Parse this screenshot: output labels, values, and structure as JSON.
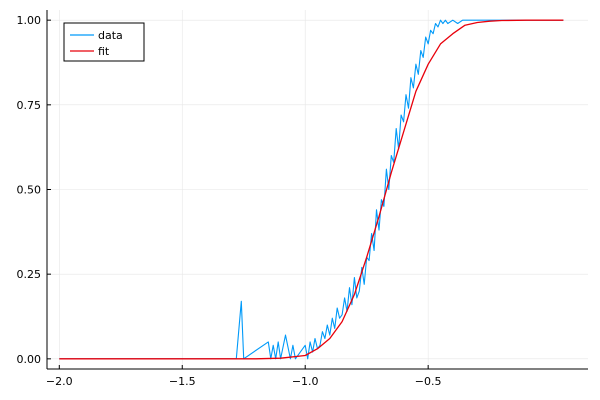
{
  "chart_data": {
    "type": "line",
    "title": "",
    "xlabel": "",
    "ylabel": "",
    "xlim": [
      -2.05,
      0.15
    ],
    "ylim": [
      -0.03,
      1.03
    ],
    "grid": true,
    "legend_position": "top-left",
    "x_ticks": [
      {
        "value": -2.0,
        "label": "−2.0"
      },
      {
        "value": -1.5,
        "label": "−1.5"
      },
      {
        "value": -1.0,
        "label": "−1.0"
      },
      {
        "value": -0.5,
        "label": "−0.5"
      }
    ],
    "y_ticks": [
      {
        "value": 0.0,
        "label": "0.00"
      },
      {
        "value": 0.25,
        "label": "0.25"
      },
      {
        "value": 0.5,
        "label": "0.50"
      },
      {
        "value": 0.75,
        "label": "0.75"
      },
      {
        "value": 1.0,
        "label": "1.00"
      }
    ],
    "series": [
      {
        "name": "data",
        "color": "#009af9",
        "style": "noisy-step",
        "x": [
          -2.0,
          -1.5,
          -1.28,
          -1.26,
          -1.25,
          -1.15,
          -1.14,
          -1.13,
          -1.12,
          -1.11,
          -1.1,
          -1.08,
          -1.06,
          -1.05,
          -1.04,
          -1.02,
          -1.0,
          -0.99,
          -0.98,
          -0.97,
          -0.96,
          -0.95,
          -0.94,
          -0.93,
          -0.92,
          -0.91,
          -0.9,
          -0.89,
          -0.88,
          -0.87,
          -0.86,
          -0.85,
          -0.84,
          -0.83,
          -0.82,
          -0.81,
          -0.8,
          -0.79,
          -0.78,
          -0.77,
          -0.76,
          -0.75,
          -0.74,
          -0.73,
          -0.72,
          -0.71,
          -0.7,
          -0.69,
          -0.68,
          -0.67,
          -0.66,
          -0.65,
          -0.64,
          -0.63,
          -0.62,
          -0.61,
          -0.6,
          -0.59,
          -0.58,
          -0.57,
          -0.56,
          -0.55,
          -0.54,
          -0.53,
          -0.52,
          -0.51,
          -0.5,
          -0.49,
          -0.48,
          -0.47,
          -0.46,
          -0.45,
          -0.44,
          -0.43,
          -0.42,
          -0.4,
          -0.38,
          -0.36,
          -0.34,
          -0.32,
          -0.3,
          -0.28,
          -0.26,
          -0.2,
          -0.1,
          0.05
        ],
        "y": [
          0.0,
          0.0,
          0.0,
          0.17,
          0.0,
          0.05,
          0.0,
          0.04,
          0.0,
          0.05,
          0.0,
          0.07,
          0.0,
          0.04,
          0.0,
          0.02,
          0.04,
          0.0,
          0.05,
          0.02,
          0.06,
          0.03,
          0.04,
          0.08,
          0.06,
          0.1,
          0.07,
          0.12,
          0.09,
          0.15,
          0.12,
          0.13,
          0.18,
          0.14,
          0.21,
          0.16,
          0.24,
          0.18,
          0.2,
          0.27,
          0.22,
          0.3,
          0.29,
          0.37,
          0.32,
          0.44,
          0.38,
          0.47,
          0.45,
          0.56,
          0.5,
          0.6,
          0.58,
          0.68,
          0.62,
          0.72,
          0.7,
          0.78,
          0.74,
          0.83,
          0.8,
          0.87,
          0.84,
          0.91,
          0.89,
          0.95,
          0.93,
          0.97,
          0.96,
          0.99,
          0.98,
          1.0,
          0.99,
          1.0,
          0.99,
          1.0,
          0.99,
          1.0,
          1.0,
          1.0,
          1.0,
          1.0,
          1.0,
          1.0,
          1.0,
          1.0
        ]
      },
      {
        "name": "fit",
        "color": "#e8000b",
        "style": "smooth",
        "x": [
          -2.0,
          -1.5,
          -1.3,
          -1.2,
          -1.1,
          -1.0,
          -0.95,
          -0.9,
          -0.85,
          -0.8,
          -0.75,
          -0.7,
          -0.65,
          -0.6,
          -0.55,
          -0.5,
          -0.45,
          -0.4,
          -0.35,
          -0.3,
          -0.25,
          -0.2,
          -0.1,
          0.05
        ],
        "y": [
          0.0,
          0.0,
          0.0,
          0.0,
          0.002,
          0.01,
          0.03,
          0.06,
          0.11,
          0.19,
          0.3,
          0.42,
          0.55,
          0.67,
          0.79,
          0.87,
          0.93,
          0.96,
          0.985,
          0.993,
          0.997,
          0.999,
          1.0,
          1.0
        ]
      }
    ]
  }
}
